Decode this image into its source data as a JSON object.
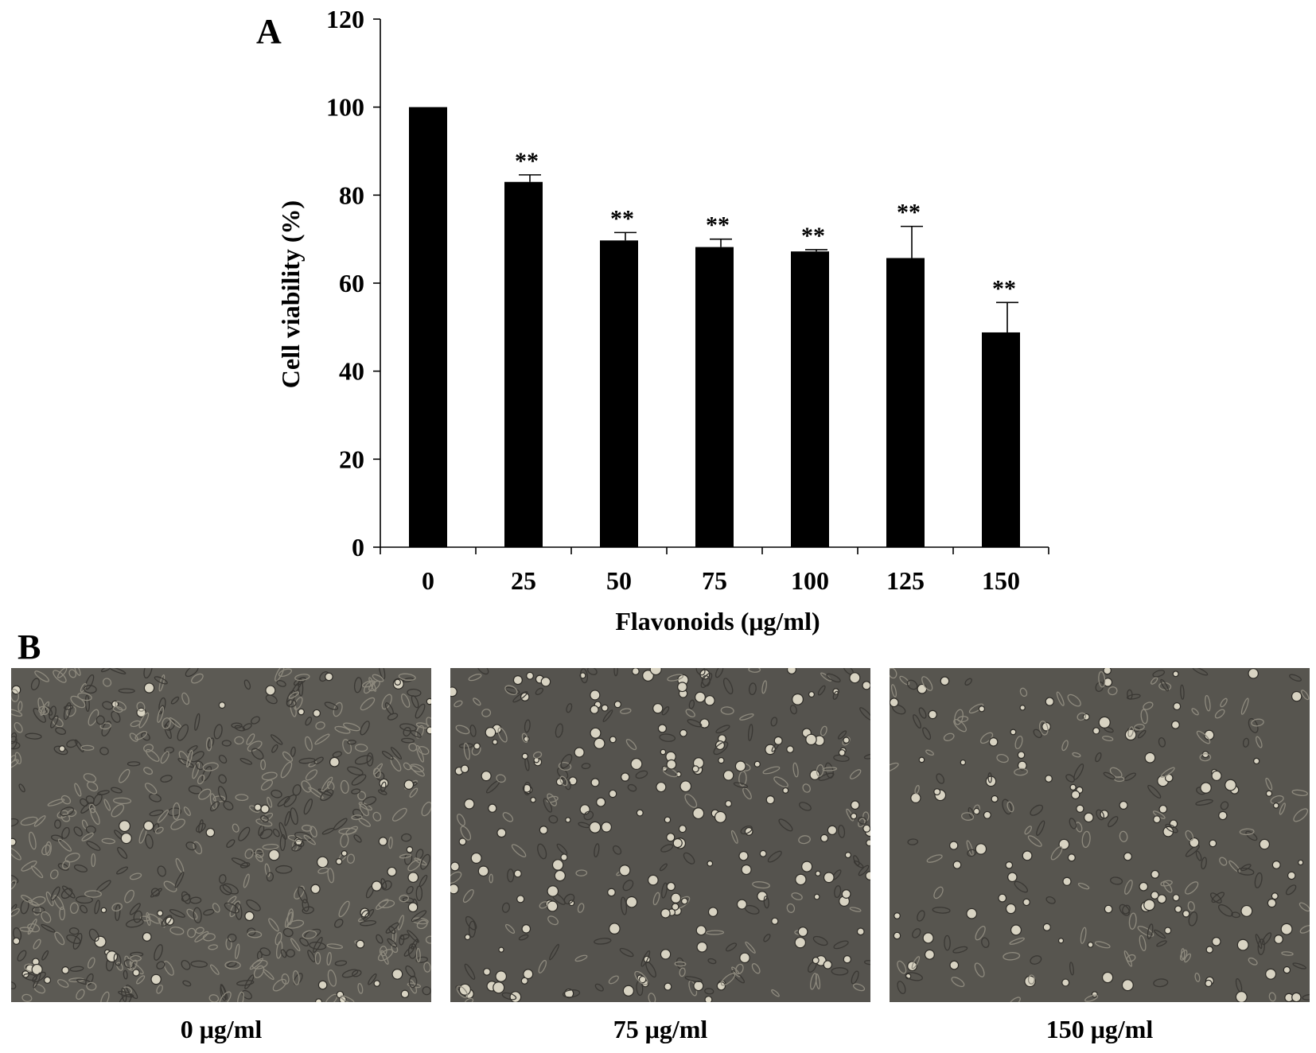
{
  "panels": {
    "a_label": "A",
    "b_label": "B"
  },
  "chart_data": {
    "type": "bar",
    "xlabel": "Flavonoids (μg/ml)",
    "ylabel": "Cell  viability (%)",
    "categories": [
      "0",
      "25",
      "50",
      "75",
      "100",
      "125",
      "150"
    ],
    "values": [
      100,
      83,
      69.7,
      68.2,
      67.2,
      65.7,
      48.8
    ],
    "errors": [
      0,
      1.6,
      1.8,
      1.8,
      0.4,
      7.2,
      6.8
    ],
    "significance": [
      "",
      "**",
      "**",
      "**",
      "**",
      "**",
      "**"
    ],
    "ylim": [
      0,
      120
    ],
    "yticks": [
      0,
      20,
      40,
      60,
      80,
      100,
      120
    ],
    "bar_color": "#000000",
    "grid": false,
    "legend": "none"
  },
  "micrographs": [
    {
      "caption": "0 μg/ml",
      "density": "dense",
      "tone": "#5c5a54"
    },
    {
      "caption": "75 μg/ml",
      "density": "medium",
      "tone": "#55534e"
    },
    {
      "caption": "150 μg/ml",
      "density": "sparse",
      "tone": "#57554f"
    }
  ]
}
